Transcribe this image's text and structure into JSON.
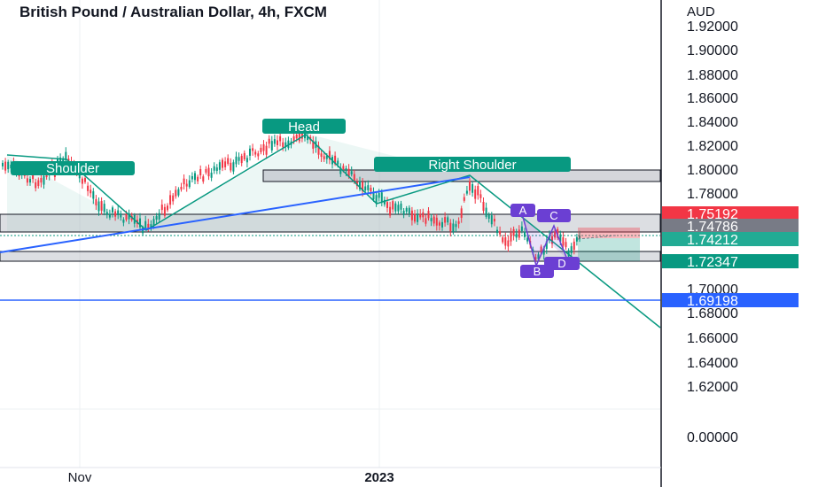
{
  "header": {
    "title": "British Pound / Australian Dollar, 4h, FXCM"
  },
  "chart_data": {
    "type": "candlestick",
    "currency_label": "AUD",
    "y_ticks": [
      "1.92000",
      "1.90000",
      "1.88000",
      "1.86000",
      "1.84000",
      "1.82000",
      "1.80000",
      "1.78000",
      "1.70000",
      "1.68000",
      "1.66000",
      "1.64000",
      "1.62000",
      "0.00000"
    ],
    "x_ticks": [
      "Nov",
      "2023"
    ],
    "price_badges": [
      {
        "value": "1.75192",
        "color": "#f23645"
      },
      {
        "value": "1.74786",
        "color": "#787b86"
      },
      {
        "value": "1.74212",
        "color": "#22ab94"
      },
      {
        "value": "1.72347",
        "color": "#089981"
      },
      {
        "value": "1.69198",
        "color": "#2962ff"
      }
    ],
    "pattern_labels": {
      "left_shoulder": "Shoulder",
      "head": "Head",
      "right_shoulder": "Right Shoulder"
    },
    "harmonic_points": [
      "A",
      "B",
      "C",
      "D"
    ],
    "colors": {
      "up": "#089981",
      "down": "#f23645",
      "pattern": "#089981",
      "trend": "#2962ff",
      "harmonic": "#6b3fd3"
    }
  }
}
